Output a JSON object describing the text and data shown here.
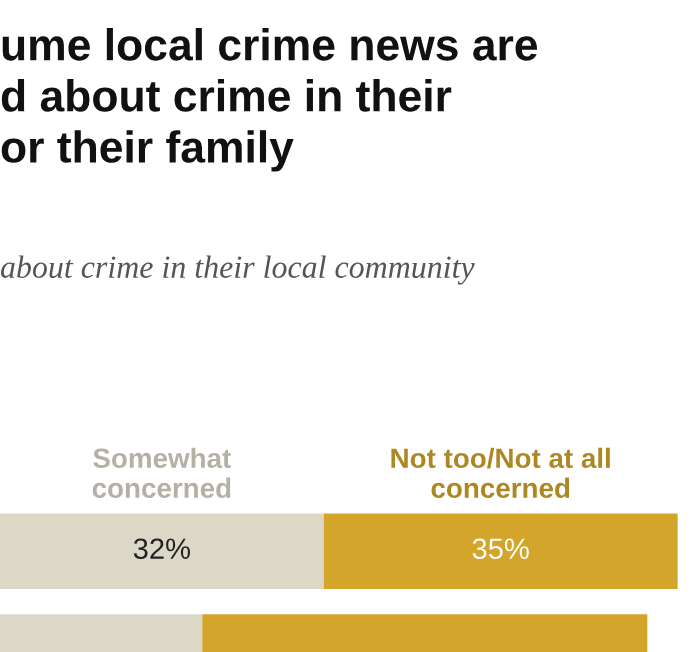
{
  "chart_data": {
    "type": "bar",
    "orientation": "horizontal",
    "stacked": true,
    "title": "ume local crime news are\nd about crime in their\nor their family",
    "subtitle": "about crime in their local community",
    "categories": [
      null,
      null
    ],
    "series": [
      {
        "name": "Somewhat\nconcerned",
        "color": "#dcd8c8",
        "values": [
          32,
          20
        ],
        "value_labels": [
          "32%",
          null
        ]
      },
      {
        "name": "Not too/Not at all\nconcerned",
        "color": "#d3a52a",
        "values": [
          35,
          44
        ],
        "value_labels": [
          "35%",
          null
        ]
      }
    ]
  }
}
